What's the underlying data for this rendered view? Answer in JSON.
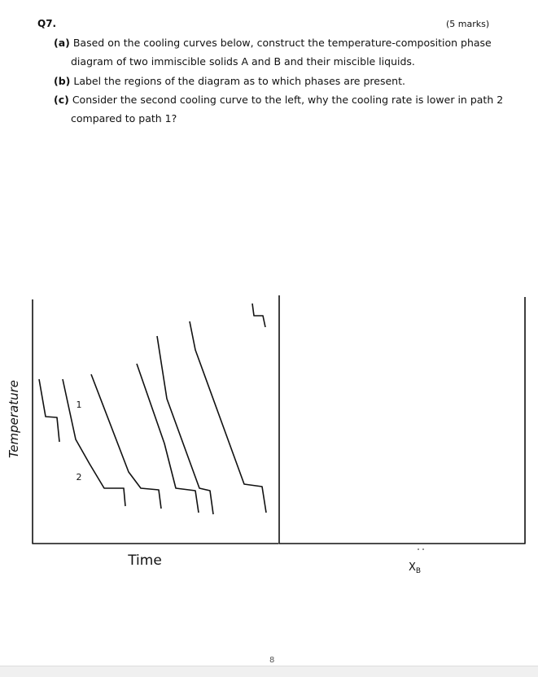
{
  "question": {
    "number": "Q7.",
    "marks": "(5 marks)",
    "parts": [
      {
        "label": "(a)",
        "text": "Based on the cooling curves below, construct the temperature-composition phase diagram of two immiscible solids A and B and their miscible liquids."
      },
      {
        "label": "(b)",
        "text": "Label the regions of the diagram as to which phases are present."
      },
      {
        "label": "(c)",
        "text": "Consider the second cooling curve to the left, why the cooling rate is lower in path 2 compared to path 1?"
      }
    ]
  },
  "figure": {
    "y_axis_label": "Temperature",
    "x_axis_label": "Time",
    "curve_labels": [
      "1",
      "2"
    ],
    "composition_axis": {
      "label": "X",
      "subscript": "B"
    }
  },
  "page_number": "8"
}
